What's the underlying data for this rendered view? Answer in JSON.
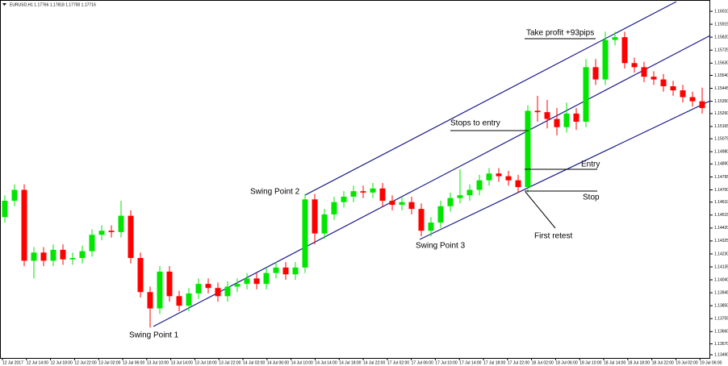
{
  "chart_data": {
    "type": "candlestick",
    "title": "EURUSD,H1  1.17766 1.17818 1.17700 1.17716",
    "up_color": "#00e600",
    "down_color": "#ff0000",
    "open": [
      1.145,
      1.1462,
      1.147,
      1.1418,
      1.1424,
      1.1418,
      1.1426,
      1.1419,
      1.142,
      1.1425,
      1.1437,
      1.144,
      1.1439,
      1.1451,
      1.142,
      1.1395,
      1.1383,
      1.141,
      1.1392,
      1.1385,
      1.1394,
      1.1401,
      1.1398,
      1.1392,
      1.1399,
      1.1401,
      1.1405,
      1.1401,
      1.1409,
      1.1413,
      1.1408,
      1.1413,
      1.1463,
      1.1438,
      1.1452,
      1.1461,
      1.1465,
      1.1469,
      1.1468,
      1.1471,
      1.1462,
      1.1459,
      1.1461,
      1.1456,
      1.144,
      1.1446,
      1.1458,
      1.1464,
      1.1466,
      1.147,
      1.1477,
      1.1482,
      1.148,
      1.1477,
      1.1472,
      1.1528,
      1.1527,
      1.1522,
      1.1516,
      1.1526,
      1.152,
      1.156,
      1.1551,
      1.158,
      1.1582,
      1.1563,
      1.156,
      1.1553,
      1.1551,
      1.1546,
      1.1543,
      1.1538,
      1.1535
    ],
    "high": [
      1.1466,
      1.1474,
      1.1474,
      1.1428,
      1.1428,
      1.143,
      1.143,
      1.1424,
      1.1429,
      1.1441,
      1.1444,
      1.1444,
      1.1462,
      1.1455,
      1.1424,
      1.1399,
      1.1414,
      1.1414,
      1.1396,
      1.1398,
      1.1405,
      1.1405,
      1.1402,
      1.1403,
      1.1405,
      1.1409,
      1.1409,
      1.1413,
      1.1417,
      1.1417,
      1.1417,
      1.1467,
      1.1467,
      1.1456,
      1.1465,
      1.1469,
      1.1473,
      1.1473,
      1.1475,
      1.1475,
      1.1466,
      1.1465,
      1.1465,
      1.146,
      1.145,
      1.1462,
      1.1468,
      1.1485,
      1.1474,
      1.1481,
      1.1486,
      1.1486,
      1.1484,
      1.1481,
      1.1532,
      1.1539,
      1.1536,
      1.153,
      1.1534,
      1.153,
      1.1566,
      1.1566,
      1.1586,
      1.1586,
      1.1586,
      1.1567,
      1.1564,
      1.1557,
      1.1555,
      1.155,
      1.1547,
      1.1542,
      1.1545
    ],
    "low": [
      1.1446,
      1.1458,
      1.1414,
      1.1405,
      1.1414,
      1.1414,
      1.1415,
      1.1415,
      1.1416,
      1.1421,
      1.1433,
      1.1435,
      1.1435,
      1.1416,
      1.1391,
      1.1369,
      1.1379,
      1.1388,
      1.1381,
      1.1381,
      1.139,
      1.1394,
      1.1388,
      1.1388,
      1.1395,
      1.1397,
      1.1397,
      1.1397,
      1.1405,
      1.1404,
      1.1404,
      1.1409,
      1.143,
      1.1434,
      1.1448,
      1.1457,
      1.1461,
      1.1464,
      1.1464,
      1.1458,
      1.1455,
      1.1455,
      1.1452,
      1.1436,
      1.1436,
      1.1442,
      1.1454,
      1.146,
      1.1462,
      1.1466,
      1.1473,
      1.1476,
      1.1473,
      1.1468,
      1.1468,
      1.152,
      1.1515,
      1.151,
      1.1512,
      1.1514,
      1.1516,
      1.1547,
      1.1547,
      1.1576,
      1.1559,
      1.1556,
      1.1549,
      1.1547,
      1.1542,
      1.1539,
      1.1534,
      1.1531,
      1.1526
    ],
    "close": [
      1.1462,
      1.147,
      1.1418,
      1.1424,
      1.1418,
      1.1426,
      1.1419,
      1.142,
      1.1425,
      1.1437,
      1.144,
      1.1439,
      1.1451,
      1.142,
      1.1395,
      1.1383,
      1.141,
      1.1392,
      1.1385,
      1.1394,
      1.1401,
      1.1398,
      1.1392,
      1.1399,
      1.1401,
      1.1405,
      1.1401,
      1.1409,
      1.1413,
      1.1408,
      1.1413,
      1.1463,
      1.1438,
      1.1452,
      1.1461,
      1.1465,
      1.1469,
      1.1468,
      1.1471,
      1.1462,
      1.1459,
      1.1461,
      1.1456,
      1.144,
      1.1446,
      1.1458,
      1.1464,
      1.1466,
      1.147,
      1.1477,
      1.1482,
      1.148,
      1.1477,
      1.1472,
      1.1528,
      1.1527,
      1.1522,
      1.1516,
      1.1526,
      1.152,
      1.156,
      1.1551,
      1.158,
      1.1582,
      1.1563,
      1.156,
      1.1553,
      1.1551,
      1.1546,
      1.1543,
      1.1538,
      1.1535,
      1.153
    ],
    "ylim": [
      1.13443,
      1.16093
    ],
    "yticks": [
      {
        "value": 1.1601,
        "label": "1.16010"
      },
      {
        "value": 1.15915,
        "label": "1.15915"
      },
      {
        "value": 1.1582,
        "label": "1.15820"
      },
      {
        "value": 1.15725,
        "label": "1.15725"
      },
      {
        "value": 1.1563,
        "label": "1.15630"
      },
      {
        "value": 1.1554,
        "label": "1.15540"
      },
      {
        "value": 1.15445,
        "label": "1.15445"
      },
      {
        "value": 1.1535,
        "label": "1.15350"
      },
      {
        "value": 1.1526,
        "label": "1.15260"
      },
      {
        "value": 1.15165,
        "label": "1.15165"
      },
      {
        "value": 1.15075,
        "label": "1.15075"
      },
      {
        "value": 1.1498,
        "label": "1.14980"
      },
      {
        "value": 1.1489,
        "label": "1.14890"
      },
      {
        "value": 1.14795,
        "label": "1.14795"
      },
      {
        "value": 1.147,
        "label": "1.14700"
      },
      {
        "value": 1.1461,
        "label": "1.14610"
      },
      {
        "value": 1.14515,
        "label": "1.14515"
      },
      {
        "value": 1.1442,
        "label": "1.14420"
      },
      {
        "value": 1.14325,
        "label": "1.14325"
      },
      {
        "value": 1.1423,
        "label": "1.14230"
      },
      {
        "value": 1.14135,
        "label": "1.14135"
      },
      {
        "value": 1.1404,
        "label": "1.14040"
      },
      {
        "value": 1.13945,
        "label": "1.13945"
      },
      {
        "value": 1.1385,
        "label": "1.13850"
      },
      {
        "value": 1.13755,
        "label": "1.13755"
      },
      {
        "value": 1.1366,
        "label": "1.13660"
      },
      {
        "value": 1.1357,
        "label": "1.13570"
      },
      {
        "value": 1.1349,
        "label": "1.13490"
      }
    ],
    "xlabels": [
      "12 Jul 2017",
      "12 Jul 14:00",
      "12 Jul 18:00",
      "12 Jul 22:00",
      "13 Jul 02:00",
      "13 Jul 06:00",
      "13 Jul 10:00",
      "13 Jul 14:00",
      "13 Jul 18:00",
      "13 Jul 22:00",
      "14 Jul 02:00",
      "14 Jul 06:00",
      "14 Jul 10:00",
      "14 Jul 14:00",
      "14 Jul 18:00",
      "14 Jul 22:00",
      "17 Jul 02:00",
      "17 Jul 06:00",
      "17 Jul 10:00",
      "17 Jul 14:00",
      "17 Jul 18:00",
      "17 Jul 22:00",
      "18 Jul 02:00",
      "18 Jul 06:00",
      "18 Jul 10:00",
      "18 Jul 14:00",
      "18 Jul 18:00",
      "18 Jul 22:00",
      "19 Jul 02:00",
      "19 Jul 06:00"
    ],
    "annotations": {
      "take_profit": "Take profit +93pips",
      "stops_to_entry": "Stops to entry",
      "entry": "Entry",
      "stop": "Stop",
      "first_retest": "First retest",
      "swing1": "Swing Point 1",
      "swing2": "Swing Point 2",
      "swing3": "Swing Point 3"
    }
  }
}
